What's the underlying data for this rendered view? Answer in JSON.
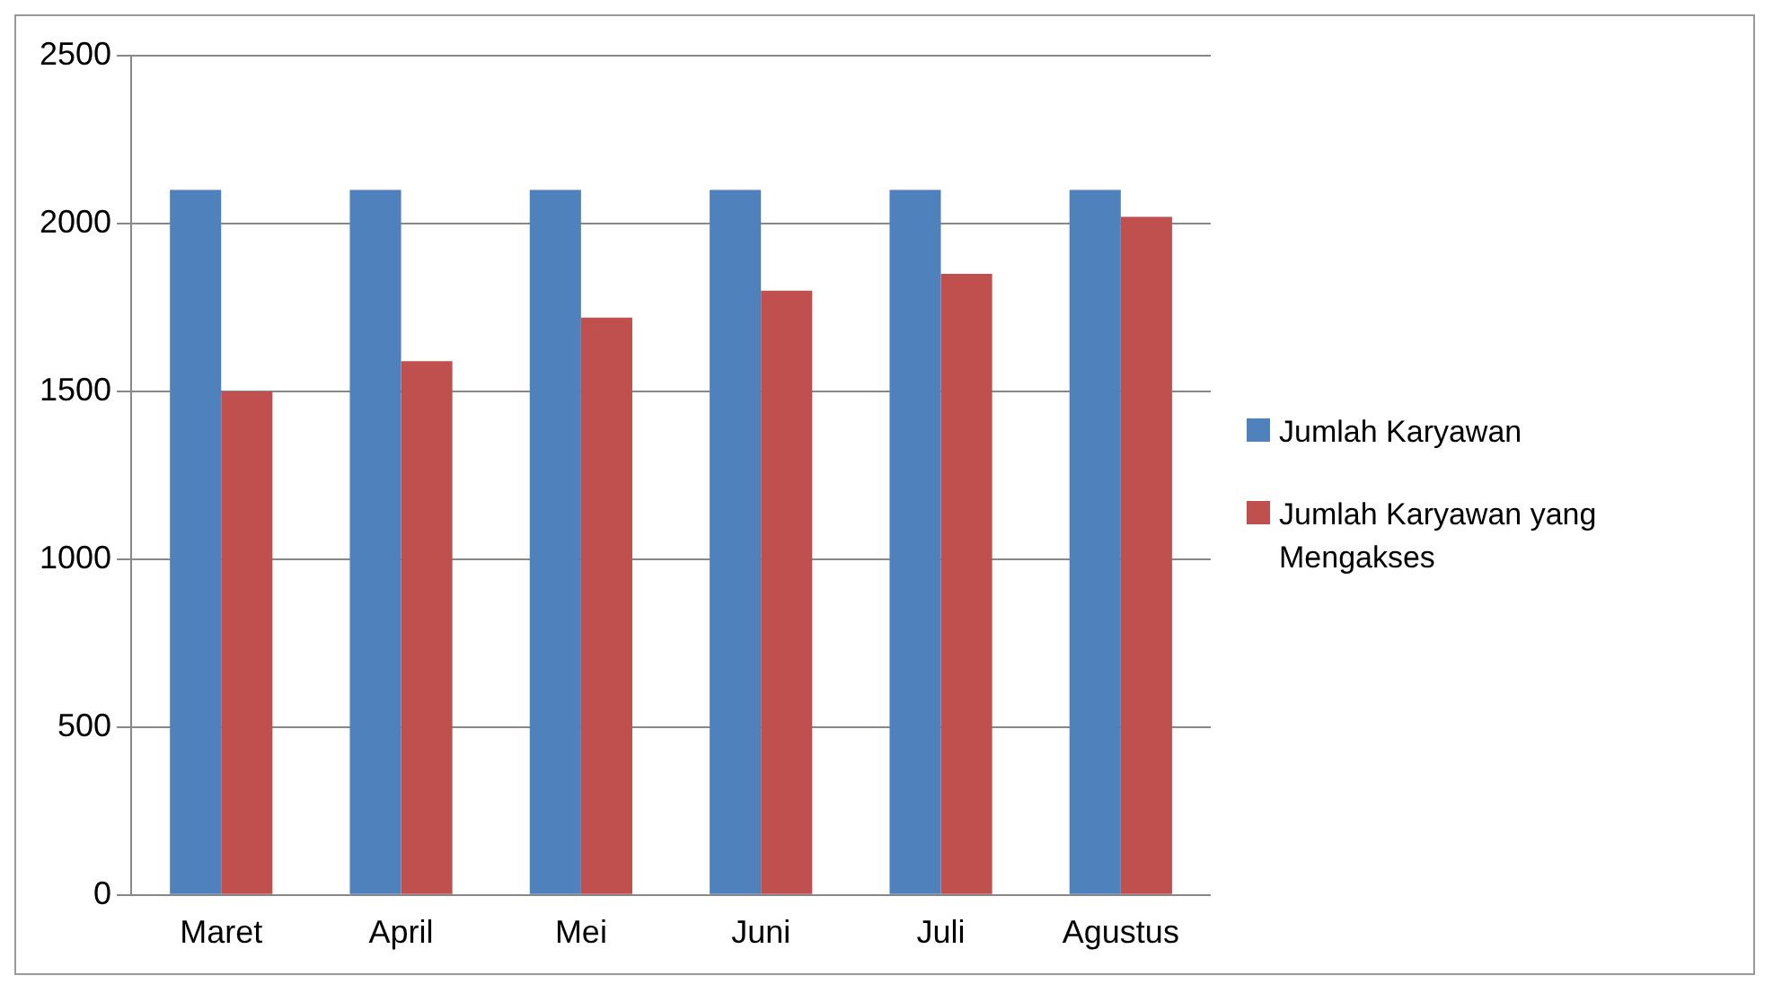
{
  "chart_data": {
    "type": "bar",
    "categories": [
      "Maret",
      "April",
      "Mei",
      "Juni",
      "Juli",
      "Agustus"
    ],
    "series": [
      {
        "name": "Jumlah Karyawan",
        "color": "#4f81bd",
        "values": [
          2100,
          2100,
          2100,
          2100,
          2100,
          2100
        ]
      },
      {
        "name": "Jumlah Karyawan yang Mengakses",
        "color": "#c0504d",
        "values": [
          1500,
          1590,
          1720,
          1800,
          1850,
          2020
        ]
      }
    ],
    "ylim": [
      0,
      2500
    ],
    "yticks": [
      0,
      500,
      1000,
      1500,
      2000,
      2500
    ],
    "grid": "y",
    "legend": "right"
  }
}
